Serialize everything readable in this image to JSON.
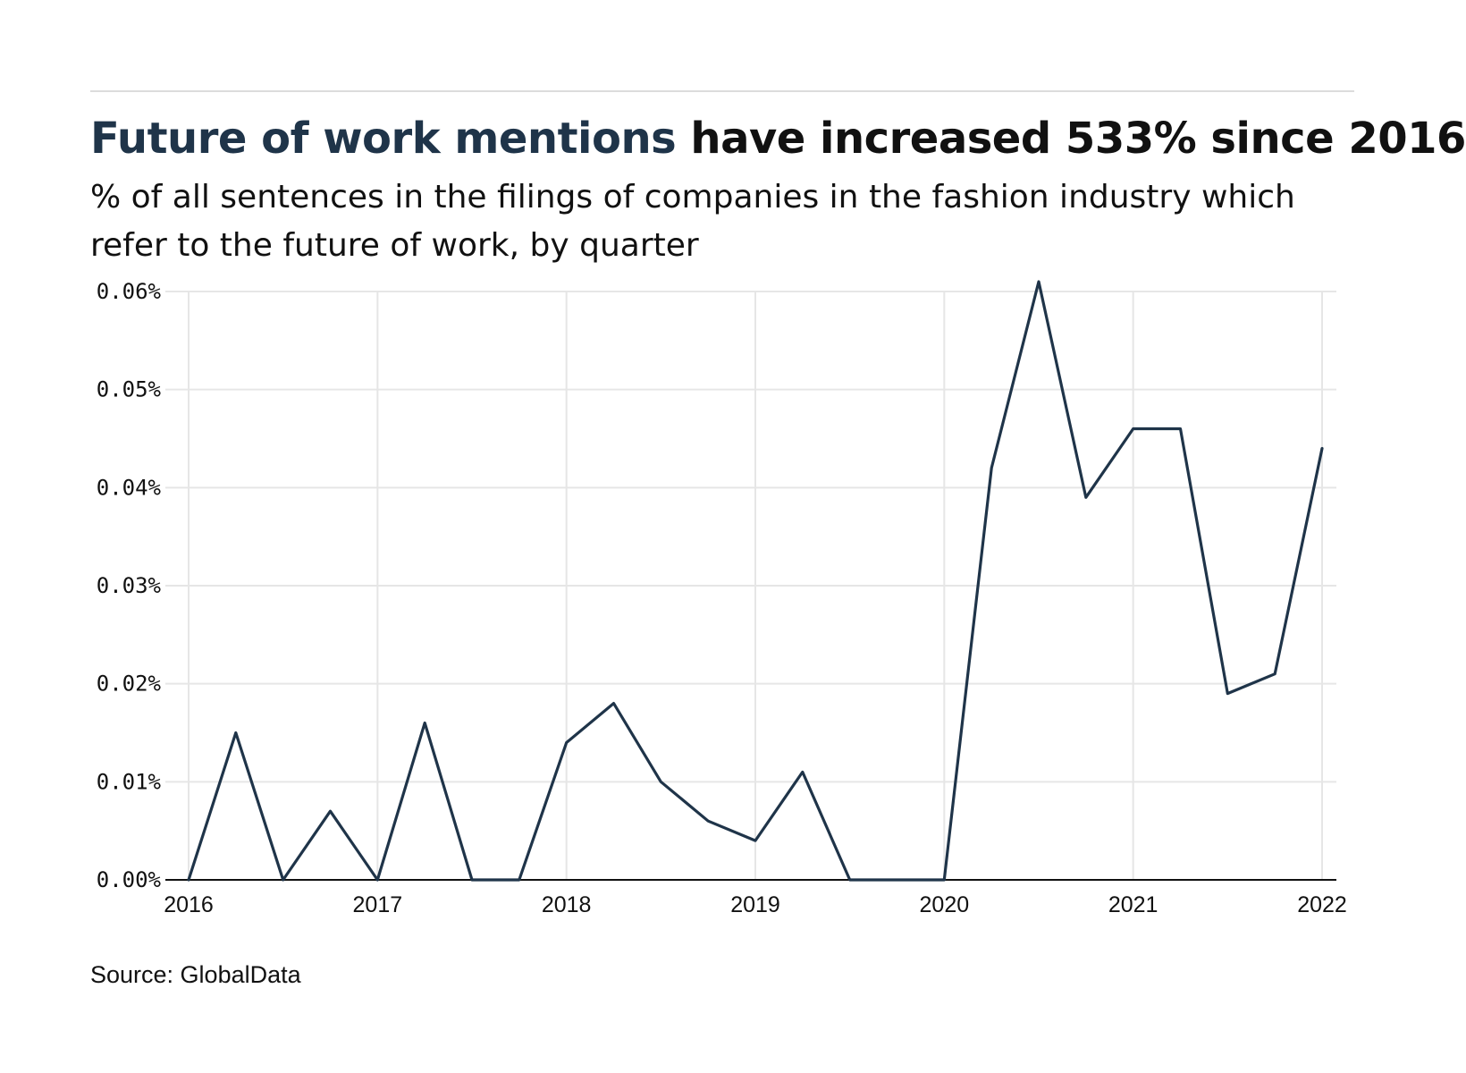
{
  "header": {
    "title_highlight": "Future of work mentions",
    "title_rest": "have increased 533% since 2016",
    "subtitle": "% of all sentences in the filings of companies in the fashion industry which refer to the future of work, by quarter"
  },
  "footer": {
    "source": "Source: GlobalData"
  },
  "colors": {
    "accent": "#1f3449",
    "line": "#1f3449",
    "grid": "#e6e6e6",
    "axis": "#111111"
  },
  "chart_data": {
    "type": "line",
    "title": "Future of work mentions have increased 533% since 2016",
    "subtitle": "% of all sentences in the filings of companies in the fashion industry which refer to the future of work, by quarter",
    "xlabel": "",
    "ylabel": "",
    "x_ticks": [
      "2016",
      "2017",
      "2018",
      "2019",
      "2020",
      "2021",
      "2022"
    ],
    "y_ticks": [
      "0.00%",
      "0.01%",
      "0.02%",
      "0.03%",
      "0.04%",
      "0.05%",
      "0.06%"
    ],
    "xlim": [
      "2016-Q1",
      "2022-Q1"
    ],
    "ylim": [
      0,
      0.06
    ],
    "grid": true,
    "legend": "none",
    "series": [
      {
        "x": [
          "2016-Q1",
          "2016-Q2",
          "2016-Q3",
          "2016-Q4",
          "2017-Q1",
          "2017-Q2",
          "2017-Q3",
          "2017-Q4",
          "2018-Q1",
          "2018-Q2",
          "2018-Q3",
          "2018-Q4",
          "2019-Q1",
          "2019-Q2",
          "2019-Q3",
          "2019-Q4",
          "2020-Q1",
          "2020-Q2",
          "2020-Q3",
          "2020-Q4",
          "2021-Q1",
          "2021-Q2",
          "2021-Q3",
          "2021-Q4",
          "2022-Q1"
        ],
        "values": [
          0.0,
          0.015,
          0.0,
          0.007,
          0.0,
          0.016,
          0.0,
          0.0,
          0.014,
          0.018,
          0.01,
          0.006,
          0.004,
          0.011,
          0.0,
          0.0,
          0.0,
          0.042,
          0.061,
          0.039,
          0.046,
          0.046,
          0.019,
          0.021,
          0.044
        ]
      }
    ]
  }
}
